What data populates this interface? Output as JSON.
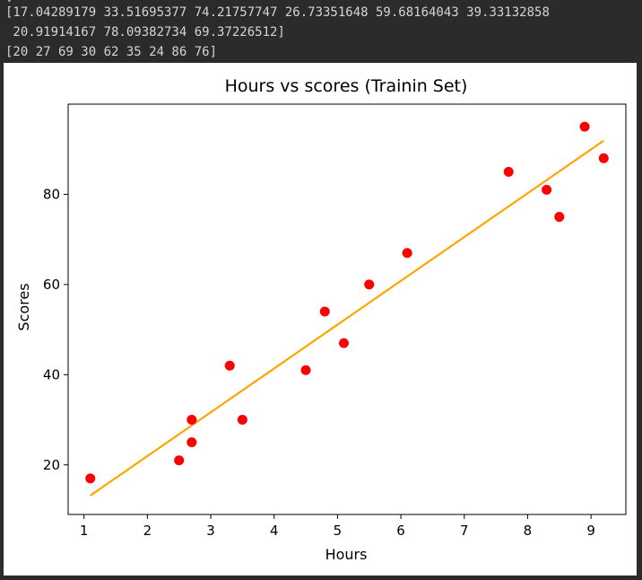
{
  "console": {
    "lines": [
      "[17.04289179 33.51695377 74.21757747 26.73351648 59.68164043 39.33132858",
      " 20.91914167 78.09382734 69.37226512]",
      "[20 27 69 30 62 35 24 86 76]"
    ],
    "top_partial": "["
  },
  "chart_data": {
    "type": "scatter",
    "title": "Hours vs scores (Trainin Set)",
    "xlabel": "Hours",
    "ylabel": "Scores",
    "xlim": [
      0.75,
      9.55
    ],
    "ylim": [
      9.0,
      100.0
    ],
    "xticks": [
      1,
      2,
      3,
      4,
      5,
      6,
      7,
      8,
      9
    ],
    "yticks": [
      20,
      40,
      60,
      80
    ],
    "grid": false,
    "series": [
      {
        "kind": "scatter",
        "color": "#ff0000",
        "x": [
          1.1,
          2.5,
          2.7,
          2.7,
          3.3,
          3.5,
          4.5,
          4.8,
          5.1,
          5.5,
          6.1,
          7.7,
          8.3,
          8.5,
          8.9,
          9.2
        ],
        "y": [
          17,
          21,
          25,
          30,
          42,
          30,
          41,
          54,
          47,
          60,
          67,
          85,
          81,
          75,
          95,
          88
        ]
      },
      {
        "kind": "line",
        "color": "#ffa500",
        "x": [
          1.1,
          9.2
        ],
        "y": [
          13.2,
          91.9
        ]
      }
    ]
  }
}
